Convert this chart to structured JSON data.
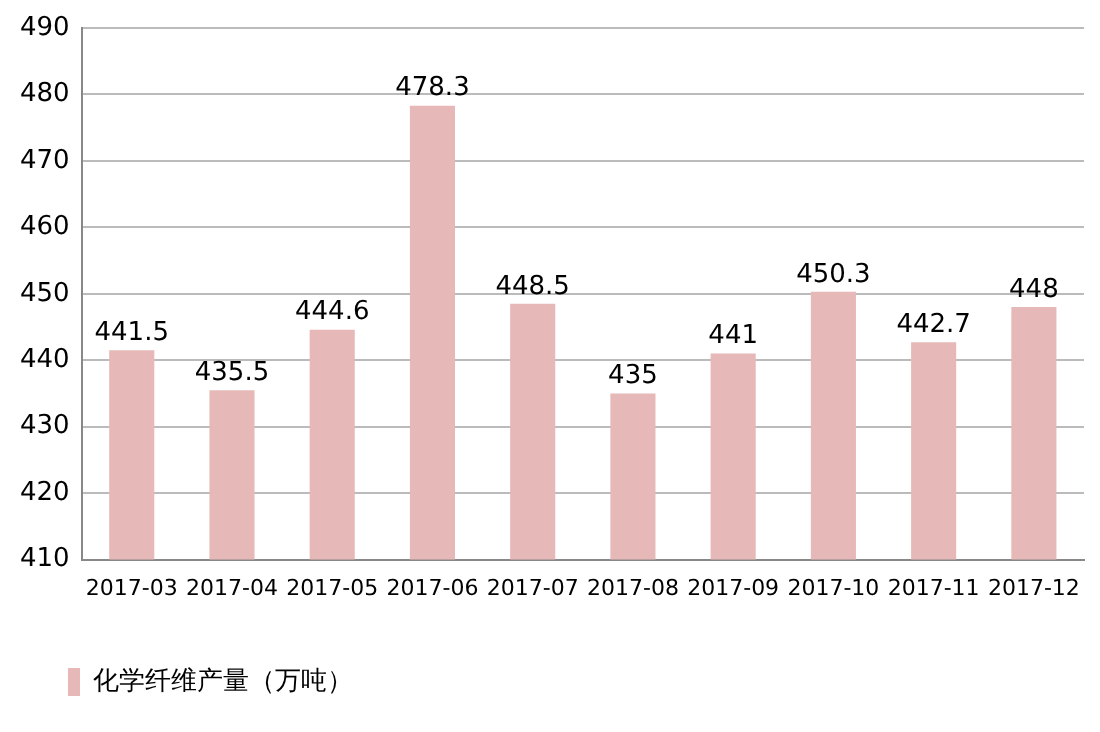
{
  "chart_data": {
    "type": "bar",
    "categories": [
      "2017-03",
      "2017-04",
      "2017-05",
      "2017-06",
      "2017-07",
      "2017-08",
      "2017-09",
      "2017-10",
      "2017-11",
      "2017-12"
    ],
    "series": [
      {
        "name": "化学纤维产量（万吨）",
        "color": "#e6b9b8",
        "values": [
          441.5,
          435.5,
          444.6,
          478.3,
          448.5,
          435,
          441,
          450.3,
          442.7,
          448
        ]
      }
    ],
    "ylim": [
      410,
      490
    ],
    "yticks": [
      410,
      420,
      430,
      440,
      450,
      460,
      470,
      480,
      490
    ],
    "grid": "y",
    "legend": "bottom",
    "data_labels": true
  }
}
